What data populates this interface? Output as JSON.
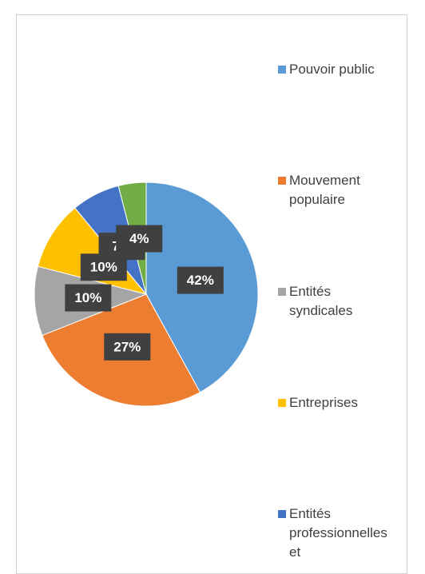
{
  "chart_data": {
    "type": "pie",
    "categories": [
      "Pouvoir public",
      "Mouvement populaire",
      "Entités syndicales",
      "Entreprises",
      "Entités professionnelles et",
      null
    ],
    "values": [
      42,
      27,
      10,
      10,
      7,
      4
    ],
    "value_labels": [
      "42%",
      "27%",
      "10%",
      "10%",
      "7%",
      "4%"
    ],
    "colors": [
      "#5b9bd5",
      "#ed7d31",
      "#a5a5a5",
      "#ffc000",
      "#4472c4",
      "#70ad47"
    ],
    "legend": "right"
  }
}
